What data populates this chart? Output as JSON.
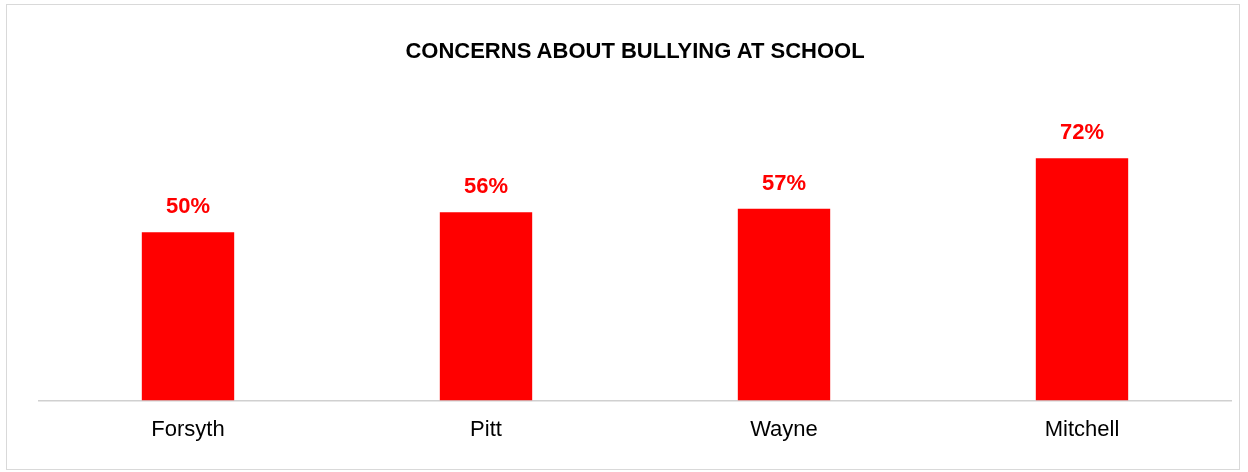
{
  "chart_data": {
    "type": "bar",
    "title": "CONCERNS ABOUT BULLYING AT SCHOOL",
    "categories": [
      "Forsyth",
      "Pitt",
      "Wayne",
      "Mitchell"
    ],
    "values": [
      50,
      56,
      57,
      72
    ],
    "value_labels": [
      "50%",
      "56%",
      "57%",
      "72%"
    ],
    "color": "#ff0000",
    "grid": false,
    "legend": false
  }
}
